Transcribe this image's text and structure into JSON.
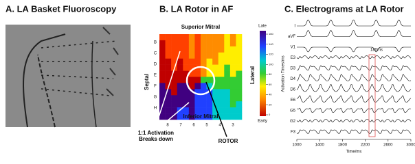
{
  "panels": {
    "a": {
      "title": "A. LA Basket Fluoroscopy"
    },
    "b": {
      "title": "B. LA Rotor in AF",
      "top": "Superior Mitral",
      "left": "Septal",
      "right": "Lateral",
      "bottom": "Inferior Mitral",
      "rotor": "ROTOR",
      "note": "1:1 Activation Breaks down",
      "rows": [
        "B",
        "C",
        "D",
        "E",
        "F",
        "G",
        "H"
      ],
      "cols": [
        "8",
        "7",
        "6",
        "5",
        "4",
        "3"
      ],
      "colorbar_title": "Activation Times/ms",
      "late": "Late",
      "early": "Early",
      "colorbar_ticks": [
        0,
        20,
        40,
        60,
        80,
        100,
        120,
        140,
        160
      ]
    },
    "c": {
      "title": "C. Electrograms at LA Rotor",
      "leads": [
        "I",
        "aVF",
        "V1",
        "E3",
        "D3",
        "D4",
        "D6",
        "E6",
        "G5",
        "G2",
        "F3"
      ],
      "cl": "180ms",
      "xlabel": "Time/ms",
      "xlim": [
        1000,
        3000
      ],
      "xticks": [
        1000,
        1400,
        1800,
        2200,
        2600,
        3000
      ]
    }
  }
}
